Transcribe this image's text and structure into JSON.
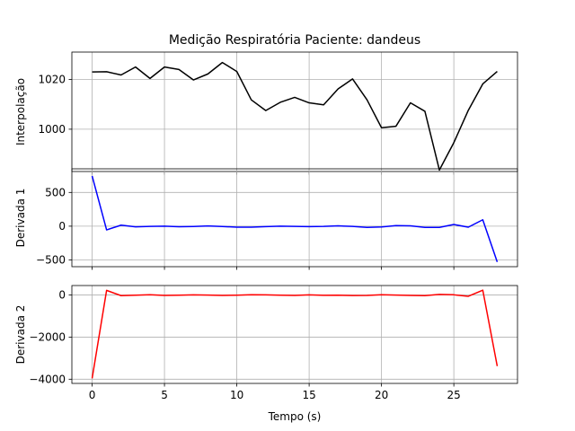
{
  "chart_data": [
    {
      "type": "line",
      "title": "Medição Respiratória Paciente: dandeus",
      "xlabel": "",
      "ylabel": "Interpolação",
      "xlim": [
        -1.4,
        29.4
      ],
      "ylim": [
        983,
        1031
      ],
      "xticks": [
        0,
        5,
        10,
        15,
        20,
        25
      ],
      "yticks": [
        1000,
        1020
      ],
      "ytick_labels": [
        "1000",
        "1020"
      ],
      "grid": true,
      "series": [
        {
          "color": "#000000",
          "x": [
            0,
            1,
            2,
            3,
            4,
            5,
            6,
            7,
            8,
            9,
            10,
            11,
            12,
            13,
            14,
            15,
            16,
            17,
            18,
            19,
            20,
            21,
            22,
            23,
            24,
            25,
            26,
            27,
            28
          ],
          "y": [
            1023,
            1023.1,
            1021.8,
            1025,
            1020.4,
            1025,
            1024,
            1019.8,
            1022.2,
            1026.8,
            1023.2,
            1011.8,
            1007.5,
            1010.8,
            1012.8,
            1010.6,
            1009.8,
            1016.2,
            1020.2,
            1011.8,
            1000.6,
            1001.2,
            1010.6,
            1007.2,
            983.6,
            994.6,
            1007.6,
            1018.2,
            1023.2
          ]
        }
      ]
    },
    {
      "type": "line",
      "xlabel": "",
      "ylabel": "Derivada 1",
      "xlim": [
        -1.4,
        29.4
      ],
      "ylim": [
        -600,
        850
      ],
      "xticks": [
        0,
        5,
        10,
        15,
        20,
        25
      ],
      "yticks": [
        -500,
        0,
        500
      ],
      "ytick_labels": [
        "−500",
        "0",
        "500"
      ],
      "grid": true,
      "series": [
        {
          "color": "#0000ff",
          "x": [
            0,
            1,
            2,
            3,
            4,
            5,
            6,
            7,
            8,
            9,
            10,
            11,
            12,
            13,
            14,
            15,
            16,
            17,
            18,
            19,
            20,
            21,
            22,
            23,
            24,
            25,
            26,
            27,
            28
          ],
          "y": [
            745,
            -55,
            15,
            -10,
            -3,
            0,
            -8,
            -4,
            3,
            -4,
            -15,
            -15,
            -6,
            0,
            -3,
            -6,
            -3,
            5,
            -3,
            -18,
            -12,
            8,
            5,
            -18,
            -18,
            25,
            -15,
            95,
            -530
          ]
        }
      ]
    },
    {
      "type": "line",
      "xlabel": "Tempo (s)",
      "ylabel": "Derivada 2",
      "xlim": [
        -1.4,
        29.4
      ],
      "ylim": [
        -4200,
        450
      ],
      "xticks": [
        0,
        5,
        10,
        15,
        20,
        25
      ],
      "xtick_labels": [
        "0",
        "5",
        "10",
        "15",
        "20",
        "25"
      ],
      "yticks": [
        -4000,
        -2000,
        0
      ],
      "ytick_labels": [
        "−4000",
        "−2000",
        "0"
      ],
      "grid": true,
      "series": [
        {
          "color": "#ff0000",
          "x": [
            0,
            1,
            2,
            3,
            4,
            5,
            6,
            7,
            8,
            9,
            10,
            11,
            12,
            13,
            14,
            15,
            16,
            17,
            18,
            19,
            20,
            21,
            22,
            23,
            24,
            25,
            26,
            27,
            28
          ],
          "y": [
            -3960,
            220,
            -30,
            -10,
            10,
            -20,
            -10,
            5,
            -5,
            -20,
            -10,
            10,
            5,
            -10,
            -20,
            5,
            -15,
            -10,
            -25,
            -20,
            10,
            -5,
            -20,
            -30,
            30,
            10,
            -60,
            230,
            -3380
          ]
        }
      ]
    }
  ]
}
